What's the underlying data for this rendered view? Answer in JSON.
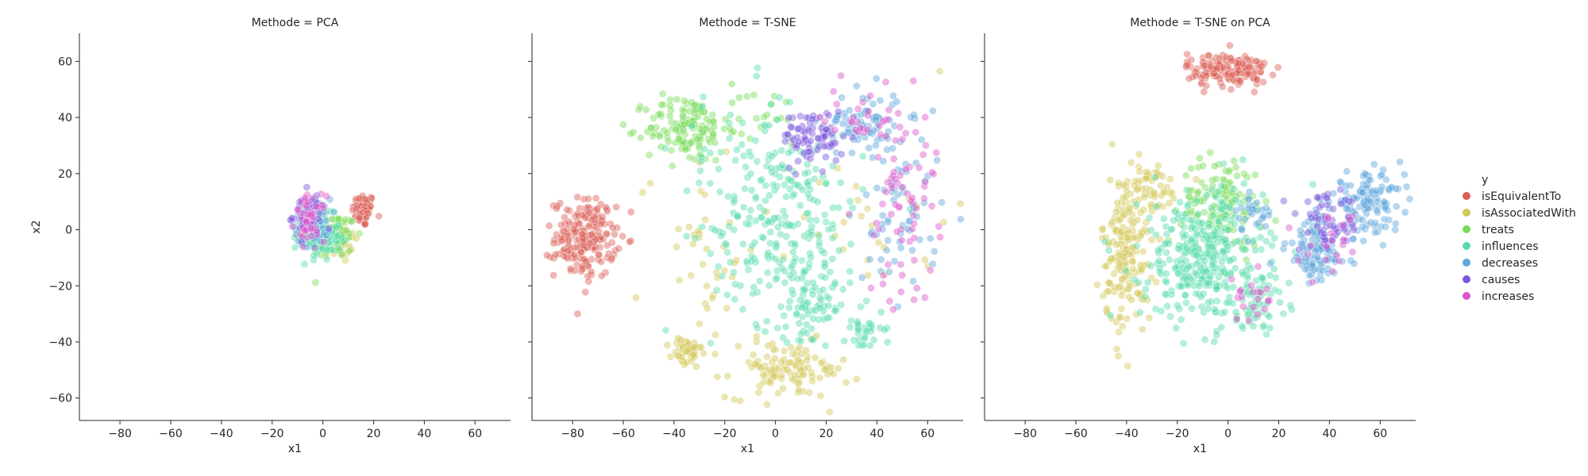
{
  "chart_data": {
    "type": "scatter",
    "shared_y_axis": true,
    "grid": false,
    "xlim": [
      -96,
      74
    ],
    "ylim": [
      -68,
      70
    ],
    "xticks": [
      -80,
      -60,
      -40,
      -20,
      0,
      20,
      40,
      60
    ],
    "yticks": [
      -60,
      -40,
      -20,
      0,
      20,
      40,
      60
    ],
    "xlabel": "x1",
    "ylabel": "x2",
    "point_alpha": 0.45,
    "legend": {
      "title": "y",
      "placement": "right",
      "entries": [
        {
          "name": "isEquivalentTo",
          "color": "#db5f57"
        },
        {
          "name": "isAssociatedWith",
          "color": "#d3c756"
        },
        {
          "name": "treats",
          "color": "#77db57"
        },
        {
          "name": "influences",
          "color": "#57dbab"
        },
        {
          "name": "decreases",
          "color": "#5ea7db"
        },
        {
          "name": "causes",
          "color": "#7c57db"
        },
        {
          "name": "increases",
          "color": "#db57c9"
        }
      ]
    },
    "panels": [
      {
        "title": "Methode = PCA",
        "clusters": [
          {
            "series": "isEquivalentTo",
            "n": 70,
            "cx": 16,
            "cy": 7,
            "sx": 2.2,
            "sy": 3.0
          },
          {
            "series": "isAssociatedWith",
            "n": 40,
            "cx": 6,
            "cy": -4,
            "sx": 4.0,
            "sy": 4.0
          },
          {
            "series": "treats",
            "n": 90,
            "cx": 4,
            "cy": -2,
            "sx": 4.5,
            "sy": 4.0
          },
          {
            "series": "influences",
            "n": 100,
            "cx": -1,
            "cy": -3,
            "sx": 4.0,
            "sy": 4.0
          },
          {
            "series": "decreases",
            "n": 80,
            "cx": -4,
            "cy": 3,
            "sx": 3.5,
            "sy": 4.0
          },
          {
            "series": "causes",
            "n": 50,
            "cx": -6,
            "cy": 5,
            "sx": 3.0,
            "sy": 4.0
          },
          {
            "series": "increases",
            "n": 50,
            "cx": -5,
            "cy": 4,
            "sx": 3.0,
            "sy": 4.0
          }
        ]
      },
      {
        "title": "Methode = T-SNE",
        "clusters": [
          {
            "series": "isEquivalentTo",
            "n": 200,
            "cx": -75,
            "cy": -3,
            "sx": 6,
            "sy": 7
          },
          {
            "series": "isAssociatedWith",
            "n": 110,
            "cx": 5,
            "cy": -50,
            "sx": 12,
            "sy": 5
          },
          {
            "series": "isAssociatedWith",
            "n": 45,
            "cx": -35,
            "cy": -44,
            "sx": 3,
            "sy": 3
          },
          {
            "series": "isAssociatedWith",
            "n": 40,
            "cx": -30,
            "cy": -5,
            "sx": 12,
            "sy": 18
          },
          {
            "series": "isAssociatedWith",
            "n": 25,
            "cx": 40,
            "cy": 5,
            "sx": 15,
            "sy": 15
          },
          {
            "series": "treats",
            "n": 130,
            "cx": -35,
            "cy": 36,
            "sx": 8,
            "sy": 6
          },
          {
            "series": "treats",
            "n": 25,
            "cx": -10,
            "cy": 40,
            "sx": 15,
            "sy": 6
          },
          {
            "series": "influences",
            "n": 230,
            "cx": 5,
            "cy": 0,
            "sx": 15,
            "sy": 17
          },
          {
            "series": "influences",
            "n": 50,
            "cx": 15,
            "cy": -28,
            "sx": 6,
            "sy": 5
          },
          {
            "series": "influences",
            "n": 35,
            "cx": 35,
            "cy": -35,
            "sx": 4,
            "sy": 4
          },
          {
            "series": "influences",
            "n": 60,
            "cx": -10,
            "cy": 20,
            "sx": 15,
            "sy": 15
          },
          {
            "series": "decreases",
            "n": 80,
            "cx": 35,
            "cy": 38,
            "sx": 8,
            "sy": 6
          },
          {
            "series": "decreases",
            "n": 60,
            "cx": 50,
            "cy": 5,
            "sx": 8,
            "sy": 15
          },
          {
            "series": "causes",
            "n": 80,
            "cx": 15,
            "cy": 33,
            "sx": 6,
            "sy": 5
          },
          {
            "series": "increases",
            "n": 70,
            "cx": 50,
            "cy": 10,
            "sx": 7,
            "sy": 18
          },
          {
            "series": "increases",
            "n": 30,
            "cx": 35,
            "cy": 40,
            "sx": 8,
            "sy": 6
          }
        ]
      },
      {
        "title": "Methode = T-SNE on PCA",
        "clusters": [
          {
            "series": "isEquivalentTo",
            "n": 160,
            "cx": 0,
            "cy": 57,
            "sx": 8,
            "sy": 3
          },
          {
            "series": "isAssociatedWith",
            "n": 170,
            "cx": -40,
            "cy": -8,
            "sx": 5,
            "sy": 14
          },
          {
            "series": "isAssociatedWith",
            "n": 50,
            "cx": -32,
            "cy": 15,
            "sx": 7,
            "sy": 5
          },
          {
            "series": "treats",
            "n": 120,
            "cx": -2,
            "cy": 10,
            "sx": 8,
            "sy": 8
          },
          {
            "series": "influences",
            "n": 330,
            "cx": -10,
            "cy": -10,
            "sx": 12,
            "sy": 12
          },
          {
            "series": "influences",
            "n": 60,
            "cx": 12,
            "cy": -25,
            "sx": 6,
            "sy": 5
          },
          {
            "series": "decreases",
            "n": 120,
            "cx": 35,
            "cy": -7,
            "sx": 6,
            "sy": 7
          },
          {
            "series": "decreases",
            "n": 120,
            "cx": 55,
            "cy": 10,
            "sx": 7,
            "sy": 5
          },
          {
            "series": "decreases",
            "n": 30,
            "cx": 10,
            "cy": 5,
            "sx": 4,
            "sy": 5
          },
          {
            "series": "causes",
            "n": 60,
            "cx": 40,
            "cy": 2,
            "sx": 6,
            "sy": 5
          },
          {
            "series": "increases",
            "n": 20,
            "cx": 10,
            "cy": -25,
            "sx": 5,
            "sy": 4
          },
          {
            "series": "increases",
            "n": 20,
            "cx": 40,
            "cy": -5,
            "sx": 6,
            "sy": 6
          }
        ]
      }
    ]
  }
}
